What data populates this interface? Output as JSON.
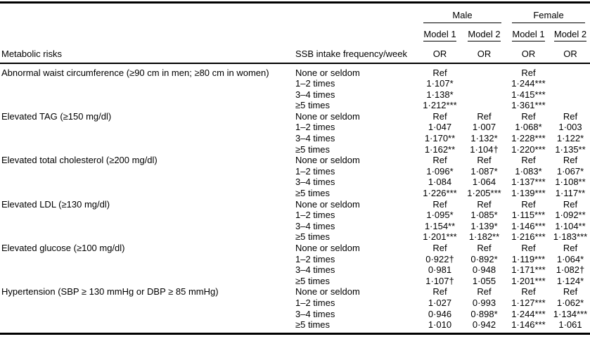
{
  "colors": {
    "text": "#000000",
    "background": "#ffffff",
    "rule": "#000000"
  },
  "table": {
    "header": {
      "male": "Male",
      "female": "Female",
      "male_model1": "Model 1",
      "male_model2": "Model 2",
      "female_model1": "Model 1",
      "female_model2": "Model 2",
      "risks_label": "Metabolic risks",
      "freq_label": "SSB intake frequency/week",
      "or_labels": [
        "OR",
        "OR",
        "OR",
        "OR"
      ]
    },
    "groups": [
      {
        "risk": "Abnormal waist circumference (≥90 cm in men; ≥80 cm in women)",
        "rows": [
          {
            "freq": "None or seldom",
            "male_m1": "Ref",
            "male_m2": "",
            "female_m1": "Ref",
            "female_m2": ""
          },
          {
            "freq": "1–2 times",
            "male_m1": "1·107*",
            "male_m2": "",
            "female_m1": "1·244***",
            "female_m2": ""
          },
          {
            "freq": "3–4 times",
            "male_m1": "1·138*",
            "male_m2": "",
            "female_m1": "1·415***",
            "female_m2": ""
          },
          {
            "freq": "≥5 times",
            "male_m1": "1·212***",
            "male_m2": "",
            "female_m1": "1·361***",
            "female_m2": ""
          }
        ]
      },
      {
        "risk": "Elevated TAG (≥150 mg/dl)",
        "rows": [
          {
            "freq": "None or seldom",
            "male_m1": "Ref",
            "male_m2": "Ref",
            "female_m1": "Ref",
            "female_m2": "Ref"
          },
          {
            "freq": "1–2 times",
            "male_m1": "1·047",
            "male_m2": "1·007",
            "female_m1": "1·068*",
            "female_m2": "1·003"
          },
          {
            "freq": "3–4 times",
            "male_m1": "1·170**",
            "male_m2": "1·132*",
            "female_m1": "1·228***",
            "female_m2": "1·122*"
          },
          {
            "freq": "≥5 times",
            "male_m1": "1·162**",
            "male_m2": "1·104†",
            "female_m1": "1·220***",
            "female_m2": "1·135**"
          }
        ]
      },
      {
        "risk": "Elevated total cholesterol (≥200 mg/dl)",
        "rows": [
          {
            "freq": "None or seldom",
            "male_m1": "Ref",
            "male_m2": "Ref",
            "female_m1": "Ref",
            "female_m2": "Ref"
          },
          {
            "freq": "1–2 times",
            "male_m1": "1·096*",
            "male_m2": "1·087*",
            "female_m1": "1·083*",
            "female_m2": "1·067*"
          },
          {
            "freq": "3–4 times",
            "male_m1": "1·084",
            "male_m2": "1·064",
            "female_m1": "1·137***",
            "female_m2": "1·108**"
          },
          {
            "freq": "≥5 times",
            "male_m1": "1·226***",
            "male_m2": "1·205***",
            "female_m1": "1·139***",
            "female_m2": "1·117**"
          }
        ]
      },
      {
        "risk": "Elevated LDL (≥130 mg/dl)",
        "rows": [
          {
            "freq": "None or seldom",
            "male_m1": "Ref",
            "male_m2": "Ref",
            "female_m1": "Ref",
            "female_m2": "Ref"
          },
          {
            "freq": "1–2 times",
            "male_m1": "1·095*",
            "male_m2": "1·085*",
            "female_m1": "1·115***",
            "female_m2": "1·092**"
          },
          {
            "freq": "3–4 times",
            "male_m1": "1·154**",
            "male_m2": "1·139*",
            "female_m1": "1·146***",
            "female_m2": "1·104**"
          },
          {
            "freq": "≥5 times",
            "male_m1": "1·201***",
            "male_m2": "1·182**",
            "female_m1": "1·216***",
            "female_m2": "1·183***"
          }
        ]
      },
      {
        "risk": "Elevated glucose (≥100 mg/dl)",
        "rows": [
          {
            "freq": "None or seldom",
            "male_m1": "Ref",
            "male_m2": "Ref",
            "female_m1": "Ref",
            "female_m2": "Ref"
          },
          {
            "freq": "1–2 times",
            "male_m1": "0·922†",
            "male_m2": "0·892*",
            "female_m1": "1·119***",
            "female_m2": "1·064*"
          },
          {
            "freq": "3–4 times",
            "male_m1": "0·981",
            "male_m2": "0·948",
            "female_m1": "1·171***",
            "female_m2": "1·082†"
          },
          {
            "freq": "≥5 times",
            "male_m1": "1·107†",
            "male_m2": "1·055",
            "female_m1": "1·201***",
            "female_m2": "1·124*"
          }
        ]
      },
      {
        "risk": "Hypertension (SBP ≥ 130 mmHg or DBP ≥ 85 mmHg)",
        "rows": [
          {
            "freq": "None or seldom",
            "male_m1": "Ref",
            "male_m2": "Ref",
            "female_m1": "Ref",
            "female_m2": "Ref"
          },
          {
            "freq": "1–2 times",
            "male_m1": "1·027",
            "male_m2": "0·993",
            "female_m1": "1·127***",
            "female_m2": "1·062*"
          },
          {
            "freq": "3–4 times",
            "male_m1": "0·946",
            "male_m2": "0·898*",
            "female_m1": "1·244***",
            "female_m2": "1·134***"
          },
          {
            "freq": "≥5 times",
            "male_m1": "1·010",
            "male_m2": "0·942",
            "female_m1": "1·146***",
            "female_m2": "1·061"
          }
        ]
      }
    ]
  }
}
